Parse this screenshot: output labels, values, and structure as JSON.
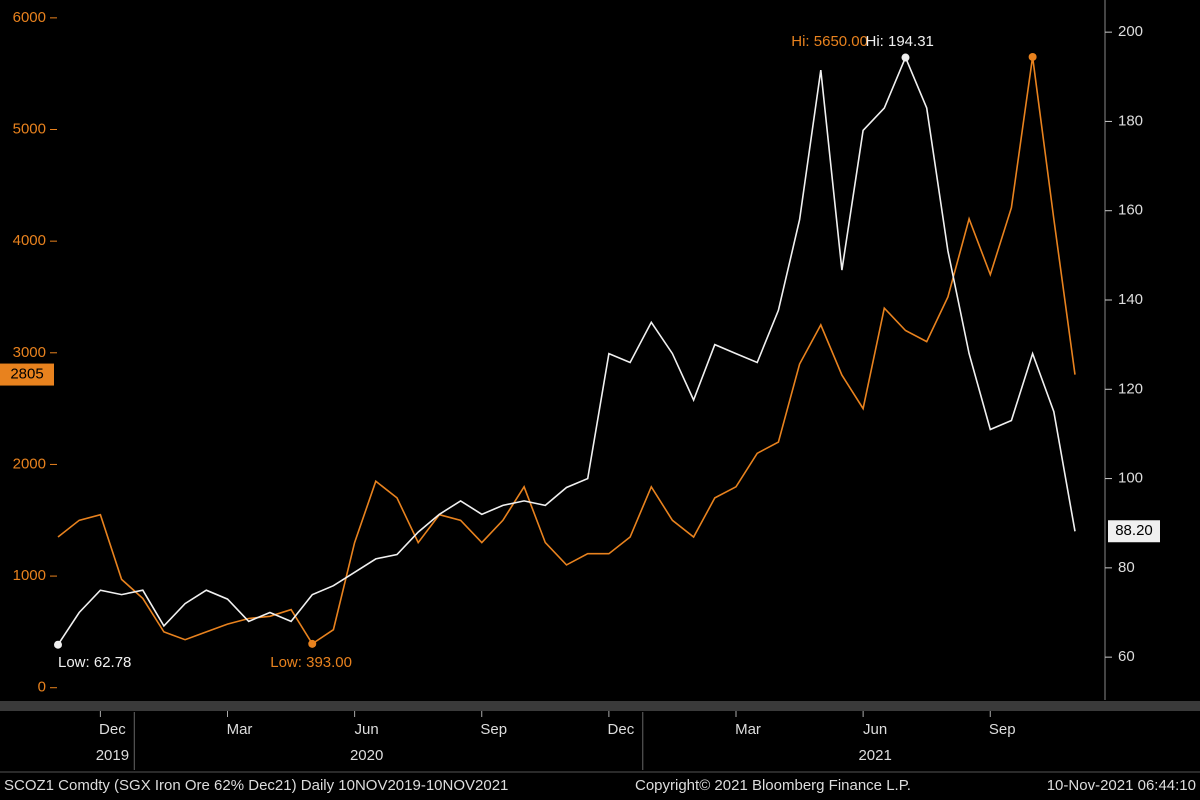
{
  "chart_data": {
    "type": "line",
    "categories": [
      null,
      null,
      "Dec",
      null,
      null,
      null,
      null,
      null,
      "Mar",
      null,
      null,
      null,
      null,
      null,
      "Jun",
      null,
      null,
      null,
      null,
      null,
      "Sep",
      null,
      null,
      null,
      null,
      null,
      "Dec",
      null,
      null,
      null,
      null,
      null,
      "Mar",
      null,
      null,
      null,
      null,
      null,
      "Jun",
      null,
      null,
      null,
      null,
      null,
      "Sep",
      null,
      null,
      null,
      null
    ],
    "x_years": [
      null,
      null,
      "2019",
      null,
      null,
      null,
      null,
      null,
      null,
      null,
      null,
      null,
      null,
      null,
      "2020",
      null,
      null,
      null,
      null,
      null,
      null,
      null,
      null,
      null,
      null,
      null,
      null,
      null,
      null,
      null,
      null,
      null,
      null,
      null,
      null,
      null,
      null,
      null,
      "2021",
      null,
      null,
      null,
      null,
      null,
      null,
      null,
      null,
      null,
      null
    ],
    "series": [
      {
        "color": "#e8821e",
        "axis": "y",
        "hi_label": "Hi: 5650.00",
        "low_label": "Low: 393.00",
        "last_label": "2805",
        "values": [
          1350,
          1500,
          1550,
          970,
          800,
          500,
          430,
          500,
          570,
          620,
          640,
          700,
          393,
          520,
          1300,
          1850,
          1700,
          1300,
          1550,
          1500,
          1300,
          1500,
          1800,
          1300,
          1100,
          1200,
          1200,
          1350,
          1800,
          1500,
          1350,
          1700,
          1800,
          2100,
          2200,
          2900,
          3250,
          2800,
          2500,
          3400,
          3200,
          3100,
          3500,
          4200,
          3700,
          4300,
          5650,
          4200,
          2805
        ]
      },
      {
        "color": "#f0f0f0",
        "axis": "y2",
        "hi_label": "Hi: 194.31",
        "low_label": "Low: 62.78",
        "last_label": "88.20",
        "values": [
          62.78,
          70,
          75,
          74,
          75,
          67,
          72,
          75,
          73,
          68,
          70,
          68,
          74,
          76,
          79,
          82,
          83,
          88,
          92,
          95,
          92,
          94,
          95,
          94,
          98,
          100,
          128,
          126,
          135,
          128,
          117.6,
          130,
          128,
          126,
          137.7,
          158,
          191.5,
          146.7,
          178,
          183,
          194.31,
          183,
          151,
          128,
          111,
          113,
          128,
          115,
          88.2
        ]
      }
    ],
    "ylim": [
      -110,
      6160
    ],
    "yticks": [
      0,
      1000,
      2000,
      3000,
      4000,
      5000,
      6000
    ],
    "y2lim": [
      50.4,
      207.2
    ],
    "y2ticks": [
      60,
      80,
      100,
      120,
      140,
      160,
      180,
      200
    ],
    "footer": {
      "left": "SCOZ1 Comdty (SGX Iron Ore 62%  Dec21)  Daily 10NOV2019-10NOV2021",
      "center": "Copyright© 2021 Bloomberg Finance L.P.",
      "right": "10-Nov-2021 06:44:10"
    }
  }
}
